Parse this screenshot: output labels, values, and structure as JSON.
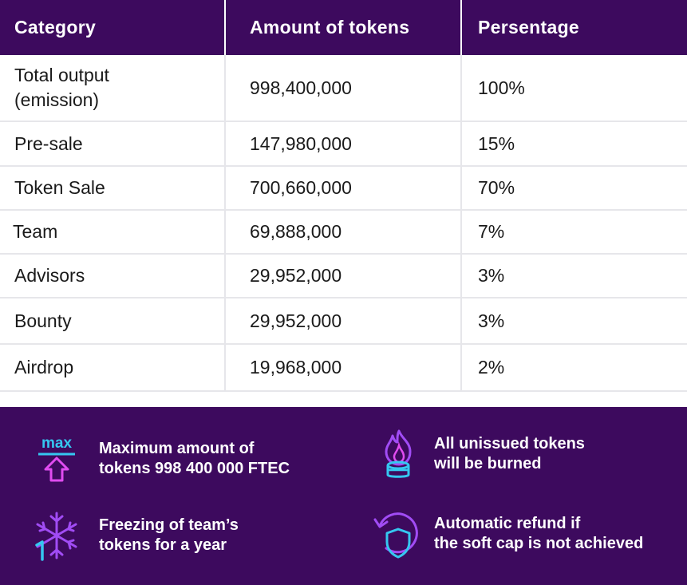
{
  "table": {
    "headers": {
      "category": "Category",
      "amount": "Amount of tokens",
      "percentage": "Persentage"
    },
    "rows": [
      {
        "category_line1": "Total output",
        "category_line2": "(emission)",
        "amount": "998,400,000",
        "percentage": "100%"
      },
      {
        "category_line1": "Pre-sale",
        "category_line2": "",
        "amount": "147,980,000",
        "percentage": "15%"
      },
      {
        "category_line1": "Token Sale",
        "category_line2": "",
        "amount": "700,660,000",
        "percentage": "70%"
      },
      {
        "category_line1": "Team",
        "category_line2": "",
        "amount": "69,888,000",
        "percentage": "7%"
      },
      {
        "category_line1": "Advisors",
        "category_line2": "",
        "amount": "29,952,000",
        "percentage": "3%"
      },
      {
        "category_line1": "Bounty",
        "category_line2": "",
        "amount": "29,952,000",
        "percentage": "3%"
      },
      {
        "category_line1": "Airdrop",
        "category_line2": "",
        "amount": "19,968,000",
        "percentage": "2%"
      }
    ]
  },
  "features": {
    "max_icon_label": "max",
    "max_line1": "Maximum amount of",
    "max_line2": "tokens 998 400 000 FTEC",
    "burn_line1": "All unissued tokens",
    "burn_line2": "will be burned",
    "freeze_line1": "Freezing of team’s",
    "freeze_line2": "tokens for a year",
    "refund_line1": "Automatic refund if",
    "refund_line2": "the soft cap is not achieved"
  },
  "colors": {
    "header_bg": "#3d0a5e",
    "accent_cyan": "#35c7f0",
    "accent_purple": "#a14cf5",
    "accent_pink": "#e04cf0"
  }
}
